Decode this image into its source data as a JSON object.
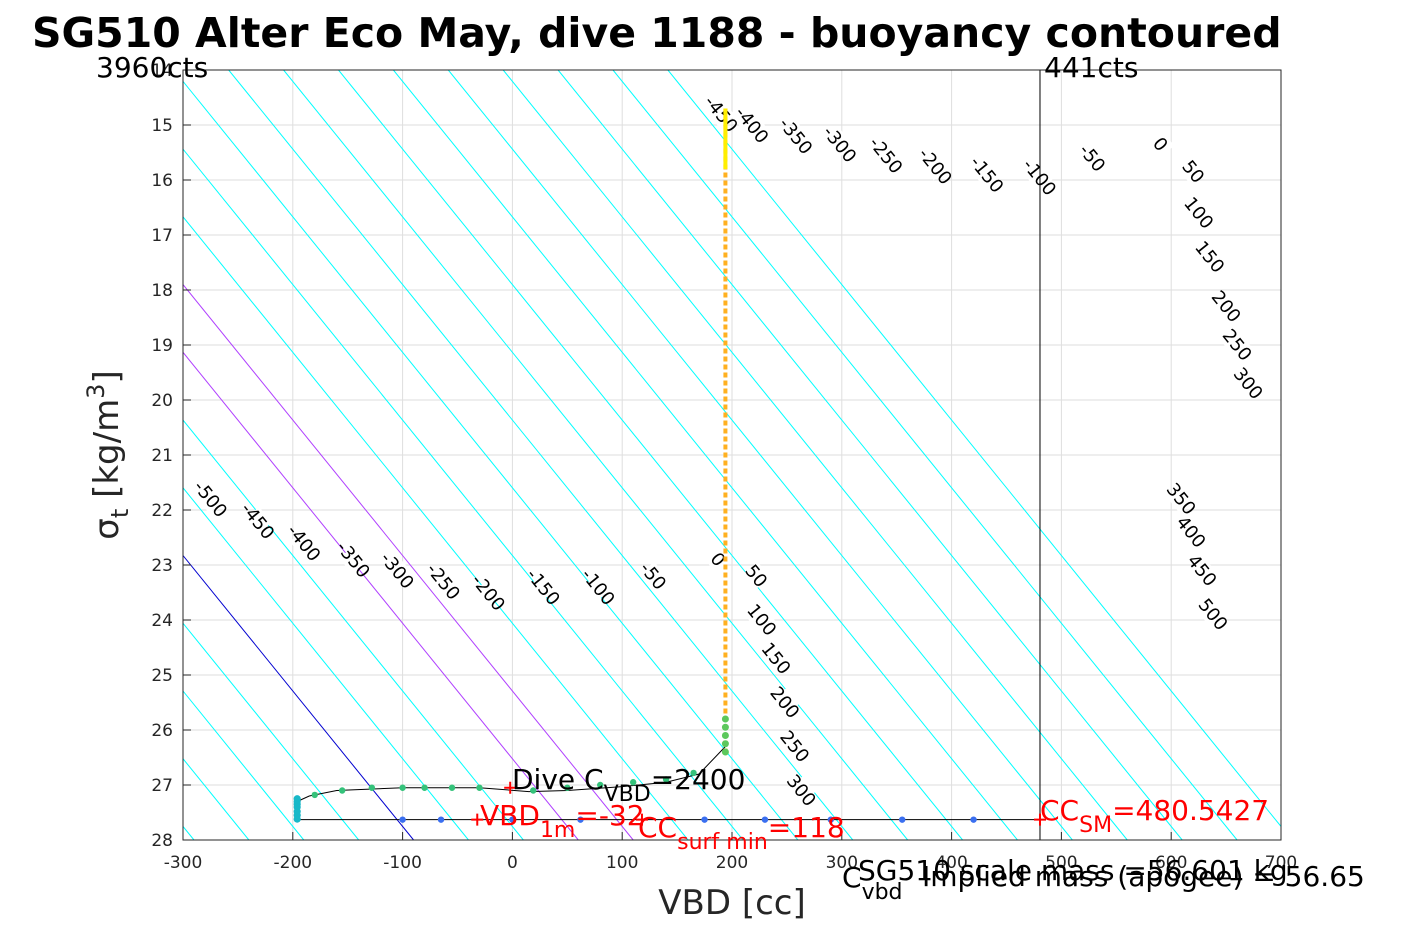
{
  "chart_data": {
    "type": "scatter",
    "title": "SG510 Alter Eco May, dive 1188 - buoyancy contoured",
    "xlabel": "VBD [cc]",
    "ylabel_main": "σ",
    "ylabel_sub": "t",
    "ylabel_unit": " [kg/m",
    "ylabel_sup": "3",
    "ylabel_close": "]",
    "xlim": [
      -300,
      700
    ],
    "ylim": [
      14,
      28
    ],
    "y_reversed": true,
    "grid": true,
    "x_ticks": [
      -300,
      -200,
      -100,
      0,
      100,
      200,
      300,
      400,
      500,
      600,
      700
    ],
    "y_ticks": [
      14,
      15,
      16,
      17,
      18,
      19,
      20,
      21,
      22,
      23,
      24,
      25,
      26,
      27,
      28
    ],
    "counts_labels": {
      "left": "3960cts",
      "right": "441cts",
      "right_vbd": 480.5
    },
    "buoyancy_contours": {
      "slope_cc_per_sigma": 40.6,
      "negative_levels": [
        -500,
        -450,
        -400,
        -350,
        -300,
        -250,
        -200,
        -150,
        -100,
        -50
      ],
      "zero_level": 0,
      "positive_levels": [
        50,
        100,
        150,
        200,
        250,
        300,
        350,
        400,
        450,
        500
      ],
      "pure_zero_vbd_at_sigma_28": -90,
      "colors": {
        "contour": "#00ffff",
        "zero": "#0000d0",
        "highlight": "#b040ff"
      },
      "highlight_levels": [
        150,
        200
      ],
      "upper_left_labels": [
        {
          "text": "-450",
          "vbd": 190,
          "sigma": 14.8
        },
        {
          "text": "-400",
          "vbd": 218,
          "sigma": 15.0
        },
        {
          "text": "-350",
          "vbd": 258,
          "sigma": 15.2
        },
        {
          "text": "-300",
          "vbd": 298,
          "sigma": 15.35
        },
        {
          "text": "-250",
          "vbd": 340,
          "sigma": 15.55
        },
        {
          "text": "-200",
          "vbd": 385,
          "sigma": 15.75
        },
        {
          "text": "-150",
          "vbd": 432,
          "sigma": 15.9
        },
        {
          "text": "-100",
          "vbd": 480,
          "sigma": 15.95
        },
        {
          "text": "-50",
          "vbd": 528,
          "sigma": 15.6
        },
        {
          "text": "0",
          "vbd": 590,
          "sigma": 15.35
        },
        {
          "text": "50",
          "vbd": 620,
          "sigma": 15.85
        },
        {
          "text": "100",
          "vbd": 625,
          "sigma": 16.6
        },
        {
          "text": "150",
          "vbd": 635,
          "sigma": 17.4
        },
        {
          "text": "200",
          "vbd": 650,
          "sigma": 18.3
        },
        {
          "text": "250",
          "vbd": 660,
          "sigma": 19.0
        },
        {
          "text": "300",
          "vbd": 670,
          "sigma": 19.7
        }
      ],
      "lower_labels": [
        {
          "text": "-500",
          "vbd": -275,
          "sigma": 21.8
        },
        {
          "text": "-450",
          "vbd": -232,
          "sigma": 22.2
        },
        {
          "text": "-400",
          "vbd": -190,
          "sigma": 22.6
        },
        {
          "text": "-350",
          "vbd": -145,
          "sigma": 22.9
        },
        {
          "text": "-300",
          "vbd": -105,
          "sigma": 23.1
        },
        {
          "text": "-250",
          "vbd": -63,
          "sigma": 23.3
        },
        {
          "text": "-200",
          "vbd": -22,
          "sigma": 23.5
        },
        {
          "text": "-150",
          "vbd": 28,
          "sigma": 23.4
        },
        {
          "text": "-100",
          "vbd": 78,
          "sigma": 23.4
        },
        {
          "text": "-50",
          "vbd": 128,
          "sigma": 23.2
        },
        {
          "text": "0",
          "vbd": 187,
          "sigma": 22.9
        },
        {
          "text": "50",
          "vbd": 222,
          "sigma": 23.2
        },
        {
          "text": "100",
          "vbd": 227,
          "sigma": 24.0
        },
        {
          "text": "150",
          "vbd": 240,
          "sigma": 24.7
        },
        {
          "text": "200",
          "vbd": 248,
          "sigma": 25.5
        },
        {
          "text": "250",
          "vbd": 257,
          "sigma": 26.3
        },
        {
          "text": "300",
          "vbd": 263,
          "sigma": 27.1
        },
        {
          "text": "350",
          "vbd": 609,
          "sigma": 21.8
        },
        {
          "text": "400",
          "vbd": 618,
          "sigma": 22.4
        },
        {
          "text": "450",
          "vbd": 628,
          "sigma": 23.1
        },
        {
          "text": "500",
          "vbd": 638,
          "sigma": 23.9
        }
      ]
    },
    "dive_profile": {
      "color": "#ffb020",
      "head_color": "#ffee00",
      "vbd": 194,
      "sigma_top": 14.7,
      "sigma_bottom": 26.4
    },
    "climb_path": [
      {
        "vbd": 194,
        "sigma": 26.3
      },
      {
        "vbd": 170,
        "sigma": 26.8
      },
      {
        "vbd": 140,
        "sigma": 26.95
      },
      {
        "vbd": 100,
        "sigma": 27.03
      },
      {
        "vbd": 50,
        "sigma": 27.1
      },
      {
        "vbd": 15,
        "sigma": 27.12
      },
      {
        "vbd": -30,
        "sigma": 27.05
      },
      {
        "vbd": -100,
        "sigma": 27.05
      },
      {
        "vbd": -160,
        "sigma": 27.1
      },
      {
        "vbd": -185,
        "sigma": 27.2
      },
      {
        "vbd": -196,
        "sigma": 27.3
      },
      {
        "vbd": -196,
        "sigma": 27.6
      }
    ],
    "green_points": [
      {
        "vbd": 165,
        "sigma": 26.78
      },
      {
        "vbd": 140,
        "sigma": 26.9
      },
      {
        "vbd": 110,
        "sigma": 26.95
      },
      {
        "vbd": 80,
        "sigma": 27.0
      },
      {
        "vbd": 50,
        "sigma": 27.05
      },
      {
        "vbd": 19,
        "sigma": 27.1
      },
      {
        "vbd": -30,
        "sigma": 27.05
      },
      {
        "vbd": -55,
        "sigma": 27.05
      },
      {
        "vbd": -80,
        "sigma": 27.05
      },
      {
        "vbd": -100,
        "sigma": 27.05
      },
      {
        "vbd": -128,
        "sigma": 27.05
      },
      {
        "vbd": -155,
        "sigma": 27.1
      },
      {
        "vbd": -180,
        "sigma": 27.18
      }
    ],
    "surface_points": [
      {
        "vbd": -196,
        "sigma": 27.25
      },
      {
        "vbd": -196,
        "sigma": 27.3
      },
      {
        "vbd": -196,
        "sigma": 27.35
      },
      {
        "vbd": -196,
        "sigma": 27.4
      },
      {
        "vbd": -196,
        "sigma": 27.48
      },
      {
        "vbd": -196,
        "sigma": 27.55
      },
      {
        "vbd": -196,
        "sigma": 27.62
      }
    ],
    "blue_points": [
      {
        "vbd": -100,
        "sigma": 27.63
      },
      {
        "vbd": -65,
        "sigma": 27.63
      },
      {
        "vbd": 0,
        "sigma": 27.63
      },
      {
        "vbd": 62,
        "sigma": 27.63
      },
      {
        "vbd": 175,
        "sigma": 27.63
      },
      {
        "vbd": 230,
        "sigma": 27.63
      },
      {
        "vbd": 290,
        "sigma": 27.63
      },
      {
        "vbd": 355,
        "sigma": 27.63
      },
      {
        "vbd": 420,
        "sigma": 27.63
      }
    ],
    "bottom_line_sigma": 27.63,
    "bottom_line_from": -196,
    "bottom_line_to": 480.5,
    "markers": [
      {
        "vbd": -2,
        "sigma": 27.05
      },
      {
        "vbd": -32,
        "sigma": 27.63
      },
      {
        "vbd": 118,
        "sigma": 27.63
      },
      {
        "vbd": 480.5,
        "sigma": 27.63
      }
    ],
    "annotations": {
      "dive_c_vbd": {
        "pre": "Dive C",
        "sub": "VBD",
        "post": "=2400"
      },
      "vbd_1m": {
        "pre": "VBD",
        "sub": "1m",
        "post": "=-32"
      },
      "cc_surf_min": {
        "pre": "CC",
        "sub": "surf min",
        "post": "=118"
      },
      "cc_sm": {
        "pre": "CC",
        "sub": "SM",
        "post": "=480.5427"
      }
    },
    "footer": {
      "cvbd_pre": "C",
      "cvbd_sub": "vbd",
      "sg_scale": "SG510 scale mass =56.601 kg",
      "implied_mass": "Implied mass (apogee) = 56.65"
    }
  }
}
